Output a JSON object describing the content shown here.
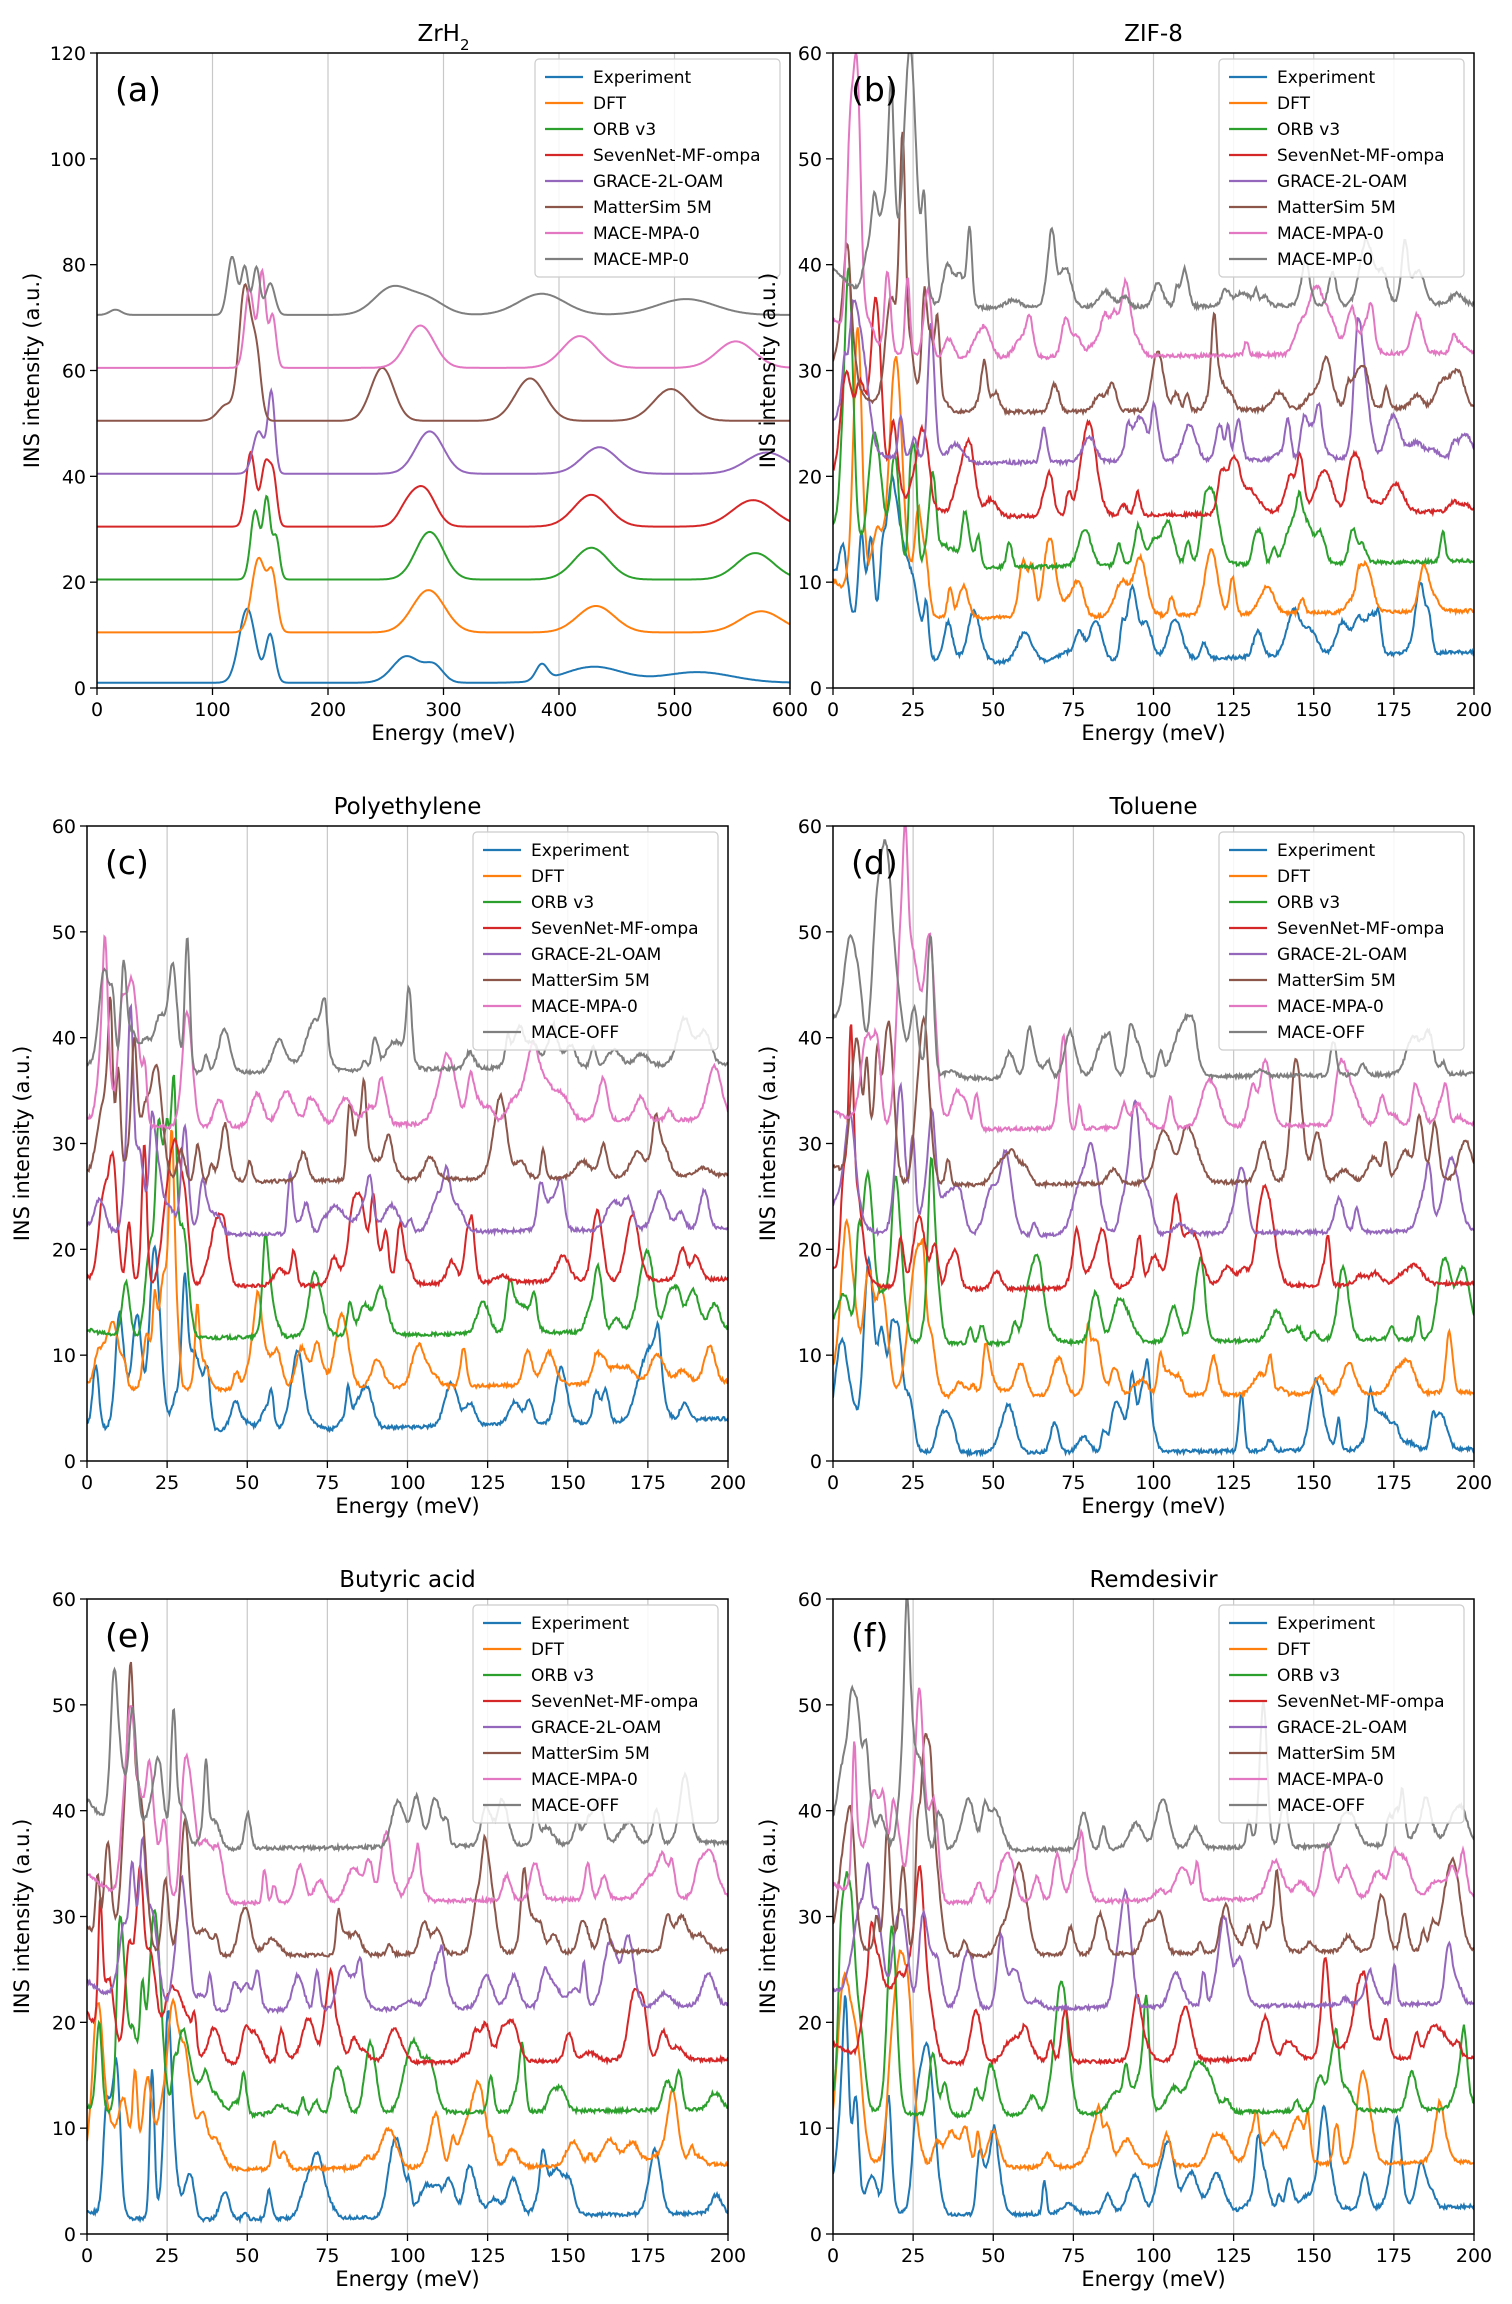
{
  "figure": {
    "y_axis_label": "INS intensity (a.u.)",
    "x_axis_label": "Energy (meV)",
    "colors": {
      "Experiment": "#1f77b4",
      "DFT": "#ff7f0e",
      "ORB v3": "#2ca02c",
      "SevenNet-MF-ompa": "#d62728",
      "GRACE-2L-OAM": "#9467bd",
      "MatterSim 5M": "#8c564b",
      "MACE-MPA-0": "#e377c2",
      "MACE-MP-0": "#7f7f7f",
      "MACE-OFF": "#7f7f7f"
    }
  },
  "chart_data": [
    {
      "type": "line",
      "panel": "(a)",
      "title": "ZrH",
      "title_sub": "2",
      "xlabel": "Energy (meV)",
      "ylabel": "INS intensity (a.u.)",
      "xlim": [
        0,
        600
      ],
      "ylim": [
        0,
        120
      ],
      "xticks": [
        0,
        100,
        200,
        300,
        400,
        500,
        600
      ],
      "yticks": [
        0,
        20,
        40,
        60,
        80,
        100,
        120
      ],
      "vgrid": [
        100,
        200,
        300,
        400,
        500
      ],
      "legend": "top-right",
      "series": [
        {
          "name": "Experiment",
          "offset": 0,
          "base": 1,
          "peaks": [
            [
              130,
              14,
              7
            ],
            [
              150,
              9,
              4
            ],
            [
              268,
              5,
              12
            ],
            [
              292,
              3,
              8
            ],
            [
              385,
              3,
              5
            ],
            [
              430,
              3,
              25
            ],
            [
              520,
              2,
              30
            ]
          ]
        },
        {
          "name": "DFT",
          "offset": 10,
          "base": 0.5,
          "peaks": [
            [
              140,
              14,
              6
            ],
            [
              152,
              10,
              4
            ],
            [
              287,
              8,
              14
            ],
            [
              432,
              5,
              16
            ],
            [
              575,
              4,
              18
            ]
          ]
        },
        {
          "name": "ORB v3",
          "offset": 20,
          "base": 0.5,
          "peaks": [
            [
              137,
              13,
              4
            ],
            [
              147,
              15,
              3
            ],
            [
              155,
              8,
              3
            ],
            [
              288,
              9,
              12
            ],
            [
              428,
              6,
              15
            ],
            [
              570,
              5,
              16
            ]
          ]
        },
        {
          "name": "SevenNet-MF-ompa",
          "offset": 30,
          "base": 0.5,
          "peaks": [
            [
              133,
              14,
              4
            ],
            [
              146,
              12,
              4
            ],
            [
              153,
              8,
              3
            ],
            [
              268,
              3,
              8
            ],
            [
              283,
              7,
              10
            ],
            [
              428,
              6,
              15
            ],
            [
              568,
              5,
              18
            ]
          ]
        },
        {
          "name": "GRACE-2L-OAM",
          "offset": 40,
          "base": 0.5,
          "peaks": [
            [
              140,
              8,
              5
            ],
            [
              151,
              15,
              3
            ],
            [
              288,
              8,
              12
            ],
            [
              435,
              5,
              15
            ],
            [
              580,
              4,
              18
            ]
          ]
        },
        {
          "name": "MatterSim 5M",
          "offset": 50,
          "base": 0.5,
          "peaks": [
            [
              112,
              3,
              7
            ],
            [
              128,
              25,
              5
            ],
            [
              138,
              12,
              4
            ],
            [
              247,
              10,
              10
            ],
            [
              375,
              8,
              13
            ],
            [
              497,
              6,
              15
            ]
          ]
        },
        {
          "name": "MACE-MPA-0",
          "offset": 60,
          "base": 0.5,
          "peaks": [
            [
              132,
              15,
              4
            ],
            [
              143,
              18,
              3
            ],
            [
              152,
              10,
              3
            ],
            [
              280,
              8,
              12
            ],
            [
              418,
              6,
              15
            ],
            [
              553,
              5,
              16
            ]
          ]
        },
        {
          "name": "MACE-MP-0",
          "offset": 70,
          "base": 0.5,
          "peaks": [
            [
              16,
              1,
              5
            ],
            [
              117,
              11,
              4
            ],
            [
              128,
              9,
              3
            ],
            [
              138,
              9,
              3
            ],
            [
              150,
              6,
              4
            ],
            [
              255,
              5,
              15
            ],
            [
              285,
              3,
              15
            ],
            [
              385,
              4,
              20
            ],
            [
              510,
              3,
              25
            ]
          ]
        }
      ]
    },
    {
      "type": "line",
      "panel": "(b)",
      "title": "ZIF-8",
      "title_sub": "",
      "xlabel": "Energy (meV)",
      "ylabel": "INS intensity (a.u.)",
      "xlim": [
        0,
        200
      ],
      "ylim": [
        0,
        60
      ],
      "xticks": [
        0,
        25,
        50,
        75,
        100,
        125,
        150,
        175,
        200
      ],
      "yticks": [
        0,
        10,
        20,
        30,
        40,
        50,
        60
      ],
      "vgrid": [
        25,
        50,
        75,
        100,
        125,
        150,
        175
      ],
      "legend": "top-right",
      "series": [
        {
          "name": "Experiment",
          "offset": 0,
          "seed": 11,
          "start": 9,
          "end": 3.4
        },
        {
          "name": "DFT",
          "offset": 5,
          "seed": 12,
          "start": 4,
          "end": 2.3
        },
        {
          "name": "ORB v3",
          "offset": 10,
          "seed": 13,
          "start": 4,
          "end": 2
        },
        {
          "name": "SevenNet-MF-ompa",
          "offset": 15,
          "seed": 14,
          "start": 4,
          "end": 1.7
        },
        {
          "name": "GRACE-2L-OAM",
          "offset": 20,
          "seed": 15,
          "start": 4,
          "end": 1.8
        },
        {
          "name": "MatterSim 5M",
          "offset": 25,
          "seed": 16,
          "start": 4,
          "end": 1.5
        },
        {
          "name": "MACE-MPA-0",
          "offset": 30,
          "seed": 17,
          "start": 4,
          "end": 1.7
        },
        {
          "name": "MACE-MP-0",
          "offset": 35,
          "seed": 18,
          "start": 4,
          "end": 1.3
        }
      ]
    },
    {
      "type": "line",
      "panel": "(c)",
      "title": "Polyethylene",
      "title_sub": "",
      "xlabel": "Energy (meV)",
      "ylabel": "INS intensity (a.u.)",
      "xlim": [
        0,
        200
      ],
      "ylim": [
        0,
        60
      ],
      "xticks": [
        0,
        25,
        50,
        75,
        100,
        125,
        150,
        175,
        200
      ],
      "yticks": [
        0,
        10,
        20,
        30,
        40,
        50,
        60
      ],
      "vgrid": [
        25,
        50,
        75,
        100,
        125,
        150,
        175
      ],
      "legend": "top-right",
      "series": [
        {
          "name": "Experiment",
          "offset": 0,
          "seed": 21,
          "start": 1,
          "end": 4
        },
        {
          "name": "DFT",
          "offset": 5,
          "seed": 22,
          "start": 1,
          "end": 2.5
        },
        {
          "name": "ORB v3",
          "offset": 10,
          "seed": 23,
          "start": 1,
          "end": 2.4
        },
        {
          "name": "SevenNet-MF-ompa",
          "offset": 15,
          "seed": 24,
          "start": 1,
          "end": 2.2
        },
        {
          "name": "GRACE-2L-OAM",
          "offset": 20,
          "seed": 25,
          "start": 1,
          "end": 2
        },
        {
          "name": "MatterSim 5M",
          "offset": 25,
          "seed": 26,
          "start": 1,
          "end": 2
        },
        {
          "name": "MACE-MPA-0",
          "offset": 30,
          "seed": 27,
          "start": 1,
          "end": 2.3
        },
        {
          "name": "MACE-OFF",
          "offset": 35,
          "seed": 28,
          "start": 1,
          "end": 2.5
        }
      ]
    },
    {
      "type": "line",
      "panel": "(d)",
      "title": "Toluene",
      "title_sub": "",
      "xlabel": "Energy (meV)",
      "ylabel": "INS intensity (a.u.)",
      "xlim": [
        0,
        200
      ],
      "ylim": [
        0,
        60
      ],
      "xticks": [
        0,
        25,
        50,
        75,
        100,
        125,
        150,
        175,
        200
      ],
      "yticks": [
        0,
        10,
        20,
        30,
        40,
        50,
        60
      ],
      "vgrid": [
        25,
        50,
        75,
        100,
        125,
        150,
        175
      ],
      "legend": "top-right",
      "series": [
        {
          "name": "Experiment",
          "offset": 0,
          "seed": 31,
          "start": 2,
          "end": 1.1
        },
        {
          "name": "DFT",
          "offset": 5,
          "seed": 32,
          "start": 2,
          "end": 1.5
        },
        {
          "name": "ORB v3",
          "offset": 10,
          "seed": 33,
          "start": 2,
          "end": 1.6
        },
        {
          "name": "SevenNet-MF-ompa",
          "offset": 15,
          "seed": 34,
          "start": 2,
          "end": 1.8
        },
        {
          "name": "GRACE-2L-OAM",
          "offset": 20,
          "seed": 35,
          "start": 2,
          "end": 1.8
        },
        {
          "name": "MatterSim 5M",
          "offset": 25,
          "seed": 36,
          "start": 2,
          "end": 1.6
        },
        {
          "name": "MACE-MPA-0",
          "offset": 30,
          "seed": 37,
          "start": 2,
          "end": 1.9
        },
        {
          "name": "MACE-OFF",
          "offset": 35,
          "seed": 38,
          "start": 6,
          "end": 1.6
        }
      ]
    },
    {
      "type": "line",
      "panel": "(e)",
      "title": "Butyric acid",
      "title_sub": "",
      "xlabel": "Energy (meV)",
      "ylabel": "INS intensity (a.u.)",
      "xlim": [
        0,
        200
      ],
      "ylim": [
        0,
        60
      ],
      "xticks": [
        0,
        25,
        50,
        75,
        100,
        125,
        150,
        175,
        200
      ],
      "yticks": [
        0,
        10,
        20,
        30,
        40,
        50,
        60
      ],
      "vgrid": [
        25,
        50,
        75,
        100,
        125,
        150,
        175
      ],
      "legend": "top-right",
      "series": [
        {
          "name": "Experiment",
          "offset": 0,
          "seed": 41,
          "start": 1,
          "end": 2
        },
        {
          "name": "DFT",
          "offset": 5,
          "seed": 42,
          "start": 1,
          "end": 1.6
        },
        {
          "name": "ORB v3",
          "offset": 10,
          "seed": 43,
          "start": 1,
          "end": 1.8
        },
        {
          "name": "SevenNet-MF-ompa",
          "offset": 15,
          "seed": 44,
          "start": 5,
          "end": 1.5
        },
        {
          "name": "GRACE-2L-OAM",
          "offset": 20,
          "seed": 45,
          "start": 3,
          "end": 1.6
        },
        {
          "name": "MatterSim 5M",
          "offset": 25,
          "seed": 46,
          "start": 3,
          "end": 1.8
        },
        {
          "name": "MACE-MPA-0",
          "offset": 30,
          "seed": 47,
          "start": 3,
          "end": 1.8
        },
        {
          "name": "MACE-OFF",
          "offset": 35,
          "seed": 48,
          "start": 5,
          "end": 2
        }
      ]
    },
    {
      "type": "line",
      "panel": "(f)",
      "title": "Remdesivir",
      "title_sub": "",
      "xlabel": "Energy (meV)",
      "ylabel": "INS intensity (a.u.)",
      "xlim": [
        0,
        200
      ],
      "ylim": [
        0,
        60
      ],
      "xticks": [
        0,
        25,
        50,
        75,
        100,
        125,
        150,
        175,
        200
      ],
      "yticks": [
        0,
        10,
        20,
        30,
        40,
        50,
        60
      ],
      "vgrid": [
        25,
        50,
        75,
        100,
        125,
        150,
        175
      ],
      "legend": "top-right",
      "series": [
        {
          "name": "Experiment",
          "offset": 0,
          "seed": 51,
          "start": 3,
          "end": 2.6
        },
        {
          "name": "DFT",
          "offset": 5,
          "seed": 52,
          "start": 2,
          "end": 1.8
        },
        {
          "name": "ORB v3",
          "offset": 10,
          "seed": 53,
          "start": 2,
          "end": 1.8
        },
        {
          "name": "SevenNet-MF-ompa",
          "offset": 15,
          "seed": 54,
          "start": 2,
          "end": 1.7
        },
        {
          "name": "GRACE-2L-OAM",
          "offset": 20,
          "seed": 55,
          "start": 2,
          "end": 1.8
        },
        {
          "name": "MatterSim 5M",
          "offset": 25,
          "seed": 56,
          "start": 2,
          "end": 1.9
        },
        {
          "name": "MACE-MPA-0",
          "offset": 30,
          "seed": 57,
          "start": 2,
          "end": 1.9
        },
        {
          "name": "MACE-OFF",
          "offset": 35,
          "seed": 58,
          "start": 2,
          "end": 1.8
        }
      ]
    }
  ]
}
